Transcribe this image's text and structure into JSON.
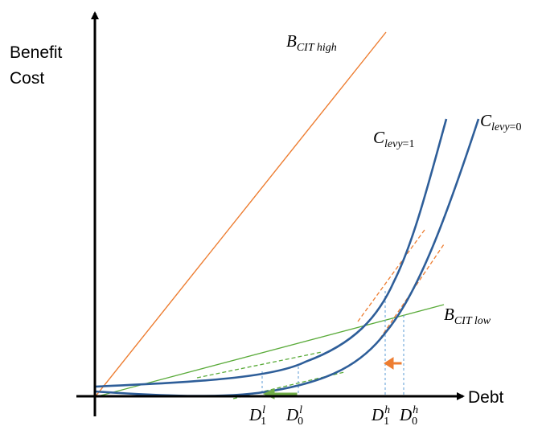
{
  "axes": {
    "y_label_line1": "Benefit",
    "y_label_line2": "Cost",
    "x_label": "Debt"
  },
  "curve_labels": {
    "b_high": {
      "main": "B",
      "sub": "CIT high"
    },
    "b_low": {
      "main": "B",
      "sub": "CIT low"
    },
    "c_levy1": {
      "main": "C",
      "sub": "levy",
      "eq": "=1"
    },
    "c_levy0": {
      "main": "C",
      "sub": "levy",
      "eq": "=0"
    }
  },
  "tick_labels": {
    "d1_low": {
      "main": "D",
      "sub": "1",
      "sup": "l"
    },
    "d0_low": {
      "main": "D",
      "sub": "0",
      "sup": "l"
    },
    "d1_high": {
      "main": "D",
      "sub": "1",
      "sup": "h"
    },
    "d0_high": {
      "main": "D",
      "sub": "0",
      "sup": "h"
    }
  },
  "colors": {
    "axis": "#000000",
    "cost_curve": "#2e5e99",
    "benefit_high": "#ed7d31",
    "benefit_low": "#5aab3a",
    "tangent_low": "#5aab3a",
    "tangent_high": "#ed7d31",
    "dropline": "#5b9bd5",
    "arrow_low": "#70ad47",
    "arrow_high": "#ed7d31"
  }
}
